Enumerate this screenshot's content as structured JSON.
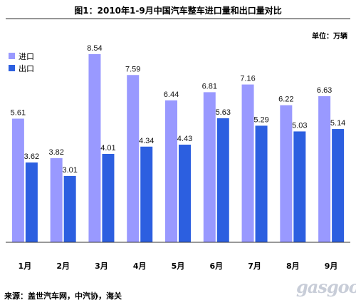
{
  "chart_data": {
    "type": "bar",
    "title": "图1：2010年1-9月中国汽车整车进口量和出口量对比",
    "unit_label": "单位：万辆",
    "categories": [
      "1月",
      "2月",
      "3月",
      "4月",
      "5月",
      "6月",
      "7月",
      "8月",
      "9月"
    ],
    "series": [
      {
        "name": "进口",
        "color": "#9999ff",
        "values": [
          5.61,
          3.82,
          8.54,
          7.59,
          6.44,
          6.81,
          7.16,
          6.22,
          6.63
        ]
      },
      {
        "name": "出口",
        "color": "#2c5fe0",
        "values": [
          3.62,
          3.01,
          4.01,
          4.34,
          4.43,
          5.63,
          5.29,
          5.03,
          5.14
        ]
      }
    ],
    "ylim": [
      0,
      9.7
    ],
    "grid": false,
    "legend_position": "top-left",
    "source": "来源：盖世汽车网，中汽协，海关"
  },
  "watermark": "gasgoo"
}
